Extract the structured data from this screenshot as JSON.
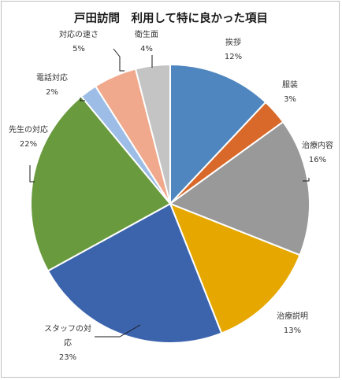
{
  "chart_data": {
    "type": "pie",
    "title": "戸田訪問　利用して特に良かった項目",
    "slices": [
      {
        "label": "挨拶",
        "label_lines": [
          "挨拶"
        ],
        "value": 12,
        "value_text": "12%",
        "color": "#4f86bf"
      },
      {
        "label": "服装",
        "label_lines": [
          "服装"
        ],
        "value": 3,
        "value_text": "3%",
        "color": "#d8692a"
      },
      {
        "label": "治療内容",
        "label_lines": [
          "治療内容"
        ],
        "value": 16,
        "value_text": "16%",
        "color": "#999999"
      },
      {
        "label": "治療説明",
        "label_lines": [
          "治療説明"
        ],
        "value": 13,
        "value_text": "13%",
        "color": "#e6a800"
      },
      {
        "label": "スタッフの対応",
        "label_lines": [
          "スタッフの対",
          "応"
        ],
        "value": 23,
        "value_text": "23%",
        "color": "#3c64ad"
      },
      {
        "label": "先生の対応",
        "label_lines": [
          "先生の対応"
        ],
        "value": 22,
        "value_text": "22%",
        "color": "#6a9a3e"
      },
      {
        "label": "電話対応",
        "label_lines": [
          "電話対応"
        ],
        "value": 2,
        "value_text": "2%",
        "color": "#9dbde6"
      },
      {
        "label": "対応の速さ",
        "label_lines": [
          "対応の速さ"
        ],
        "value": 5,
        "value_text": "5%",
        "color": "#f0a98c"
      },
      {
        "label": "衛生面",
        "label_lines": [
          "衛生面"
        ],
        "value": 4,
        "value_text": "4%",
        "color": "#c4c4c4"
      }
    ],
    "legend": "none",
    "data_labels": "outside with leader lines"
  }
}
